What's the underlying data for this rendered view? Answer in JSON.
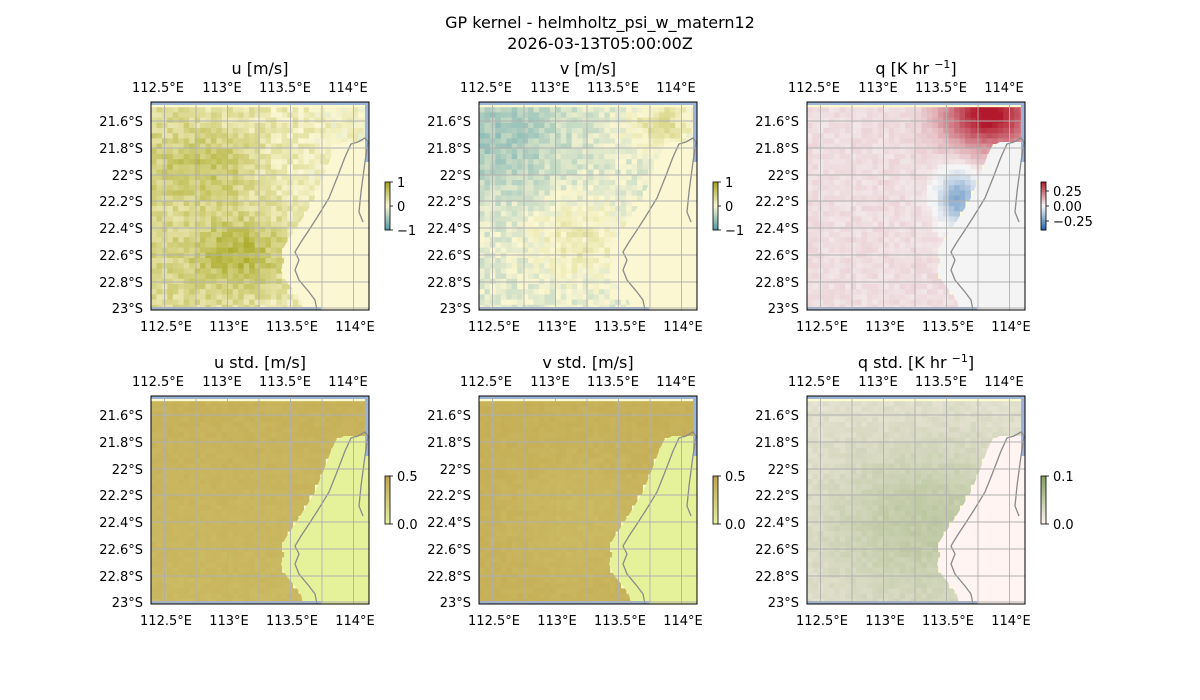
{
  "figure": {
    "title_line1": "GP kernel - helmholtz_psi_w_matern12",
    "title_line2": "2026-03-13T05:00:00Z"
  },
  "chart_data": [
    {
      "type": "heatmap",
      "title": "u [m/s]",
      "lon_ticks": [
        "112.5°E",
        "113°E",
        "113.5°E",
        "114°E"
      ],
      "lat_ticks": [
        "21.6°S",
        "21.8°S",
        "22°S",
        "22.2°S",
        "22.4°S",
        "22.6°S",
        "22.8°S",
        "23°S"
      ],
      "colorbar": {
        "ticks": [
          "1",
          "0",
          "−1"
        ],
        "range": [
          -1,
          1
        ],
        "colormap": "blue-white-olive"
      },
      "color_low": "#4f9aa6",
      "color_mid": "#fbf7d2",
      "color_high": "#a3a31a"
    },
    {
      "type": "heatmap",
      "title": "v [m/s]",
      "lon_ticks": [
        "112.5°E",
        "113°E",
        "113.5°E",
        "114°E"
      ],
      "lat_ticks": [
        "21.6°S",
        "21.8°S",
        "22°S",
        "22.2°S",
        "22.4°S",
        "22.6°S",
        "22.8°S",
        "23°S"
      ],
      "colorbar": {
        "ticks": [
          "1",
          "0",
          "−1"
        ],
        "range": [
          -1,
          1
        ],
        "colormap": "blue-white-olive"
      },
      "color_low": "#4f9aa6",
      "color_mid": "#fbf7d2",
      "color_high": "#a3a31a"
    },
    {
      "type": "heatmap",
      "title": "q [K hr ",
      "title_sup": "−1",
      "title_end": "]",
      "lon_ticks": [
        "112.5°E",
        "113°E",
        "113.5°E",
        "114°E"
      ],
      "lat_ticks": [
        "21.6°S",
        "21.8°S",
        "22°S",
        "22.2°S",
        "22.4°S",
        "22.6°S",
        "22.8°S",
        "23°S"
      ],
      "colorbar": {
        "ticks": [
          "0.25",
          "0.00",
          "−0.25"
        ],
        "range": [
          -0.35,
          0.35
        ],
        "colormap": "RdBu_r"
      },
      "color_low": "#2166ac",
      "color_mid": "#f7f7f7",
      "color_high": "#b2182b"
    },
    {
      "type": "heatmap",
      "title": "u std. [m/s]",
      "lon_ticks": [
        "112.5°E",
        "113°E",
        "113.5°E",
        "114°E"
      ],
      "lat_ticks": [
        "21.6°S",
        "21.8°S",
        "22°S",
        "22.2°S",
        "22.4°S",
        "22.6°S",
        "22.8°S",
        "23°S"
      ],
      "colorbar": {
        "ticks": [
          "0.5",
          "0.0"
        ],
        "range": [
          0,
          0.55
        ],
        "colormap": "yellow-brown"
      },
      "color_low": "#e6f29a",
      "color_high": "#bfa24a"
    },
    {
      "type": "heatmap",
      "title": "v std. [m/s]",
      "lon_ticks": [
        "112.5°E",
        "113°E",
        "113.5°E",
        "114°E"
      ],
      "lat_ticks": [
        "21.6°S",
        "21.8°S",
        "22°S",
        "22.2°S",
        "22.4°S",
        "22.6°S",
        "22.8°S",
        "23°S"
      ],
      "colorbar": {
        "ticks": [
          "0.5",
          "0.0"
        ],
        "range": [
          0,
          0.55
        ],
        "colormap": "yellow-brown"
      },
      "color_low": "#e6f29a",
      "color_high": "#bfa24a"
    },
    {
      "type": "heatmap",
      "title": "q std. [K hr ",
      "title_sup": "−1",
      "title_end": "]",
      "lon_ticks": [
        "112.5°E",
        "113°E",
        "113.5°E",
        "114°E"
      ],
      "lat_ticks": [
        "21.6°S",
        "21.8°S",
        "22°S",
        "22.2°S",
        "22.4°S",
        "22.6°S",
        "22.8°S",
        "23°S"
      ],
      "colorbar": {
        "ticks": [
          "0.1",
          "0.0"
        ],
        "range": [
          0,
          0.12
        ],
        "colormap": "pink-green"
      },
      "color_low": "#fff3f0",
      "color_high": "#7fa05a"
    }
  ],
  "map_colors": {
    "ocean_edge": "#9db4d9",
    "land": "#fdfbd0",
    "coastline": "#8a8a8a",
    "grid": "#b0b0b0"
  }
}
